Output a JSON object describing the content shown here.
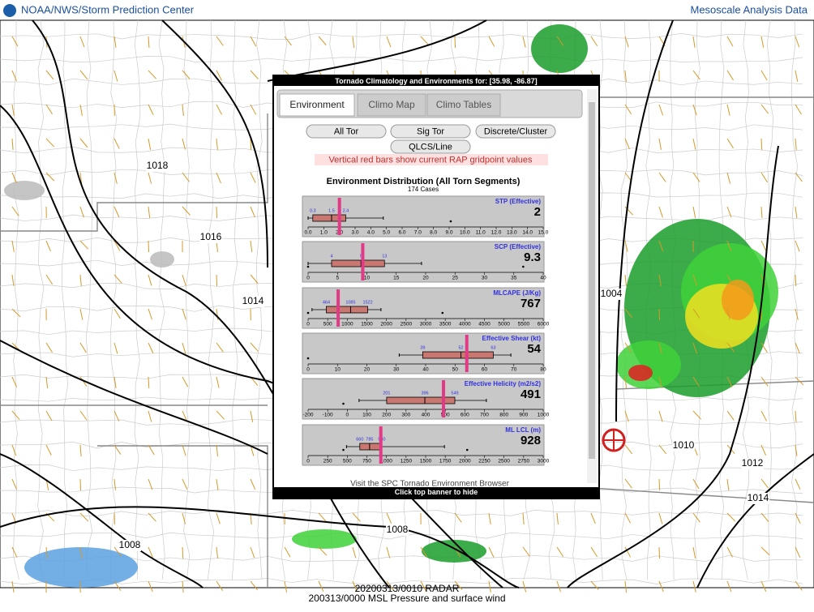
{
  "header": {
    "left": "NOAA/NWS/Storm Prediction Center",
    "right": "Mesoscale Analysis Data"
  },
  "map": {
    "isobar_labels": [
      "1018",
      "1016",
      "1014",
      "1004",
      "1010",
      "1012",
      "1014",
      "1008",
      "1008"
    ]
  },
  "footer": [
    "20200313/0010 RADAR",
    "200313/0000 MSL Pressure and surface wind"
  ],
  "popup": {
    "title": "Tornado Climatology and Environments for: [35.98, -86.87]",
    "tabs": [
      "Environment",
      "Climo Map",
      "Climo Tables"
    ],
    "buttons": [
      "All Tor",
      "Sig Tor",
      "Discrete/Cluster",
      "QLCS/Line"
    ],
    "note": "Vertical red bars show current RAP gridpoint values",
    "heading": "Environment Distribution (All Torn Segments)",
    "cases": "174 Cases",
    "panels": [
      {
        "label": "STP (Effective)",
        "current": 2,
        "xlim": [
          0,
          15
        ],
        "xticks": [
          {
            "value": 0,
            "label": "0.0"
          },
          {
            "value": 1,
            "label": "1.0"
          },
          {
            "value": 2,
            "label": "2.0"
          },
          {
            "value": 3,
            "label": "3.0"
          },
          {
            "value": 4,
            "label": "4.0"
          },
          {
            "value": 5,
            "label": "5.0"
          },
          {
            "value": 6,
            "label": "6.0"
          },
          {
            "value": 7,
            "label": "7.0"
          },
          {
            "value": 8,
            "label": "8.0"
          },
          {
            "value": 9,
            "label": "9.0"
          },
          {
            "value": 10,
            "label": "10.0"
          },
          {
            "value": 11,
            "label": "11.0"
          },
          {
            "value": 12,
            "label": "12.0"
          },
          {
            "value": 13,
            "label": "13.0"
          },
          {
            "value": 14,
            "label": "14.0"
          },
          {
            "value": 15,
            "label": "15.0"
          }
        ],
        "q1": 0.3,
        "median": 1.5,
        "q3": 2.4,
        "whisker": [
          0,
          4.8
        ],
        "outliers": [
          9.1
        ]
      },
      {
        "label": "SCP (Effective)",
        "current": 9.3,
        "xlim": [
          0,
          40
        ],
        "xticks": [
          0,
          5,
          10,
          15,
          20,
          25,
          30,
          35,
          40
        ],
        "q1": 4,
        "median": 9,
        "q3": 13,
        "whisker": [
          0,
          19.3
        ],
        "outliers": [
          0,
          36.6
        ]
      },
      {
        "label": "MLCAPE (J/Kg)",
        "current": 767,
        "xlim": [
          0,
          6000
        ],
        "xticks": [
          0,
          500,
          1000,
          1500,
          2000,
          2500,
          3000,
          3500,
          4000,
          4500,
          5000,
          5500,
          6000
        ],
        "q1": 464,
        "median": 1085,
        "q3": 1522,
        "whisker": [
          100,
          1860
        ],
        "outliers": [
          0,
          3430
        ]
      },
      {
        "label": "Effective Shear (kt)",
        "current": 54,
        "xlim": [
          0,
          80
        ],
        "xticks": [
          0,
          10,
          20,
          30,
          40,
          50,
          60,
          70,
          80
        ],
        "q1": 39,
        "median": 52,
        "q3": 63,
        "whisker": [
          31,
          69
        ],
        "outliers": [
          0
        ]
      },
      {
        "label": "Effective Helicity (m2/s2)",
        "current": 491,
        "xlim": [
          -200,
          1000
        ],
        "xticks": [
          -200,
          -100,
          0,
          100,
          200,
          300,
          400,
          500,
          600,
          700,
          800,
          900,
          1000
        ],
        "q1": 201,
        "median": 396,
        "q3": 549,
        "whisker": [
          60,
          710
        ],
        "outliers": [
          -20
        ]
      },
      {
        "label": "ML LCL (m)",
        "current": 928,
        "xlim": [
          0,
          3000
        ],
        "xticks": [
          0,
          250,
          500,
          750,
          1000,
          1250,
          1500,
          1750,
          2000,
          2250,
          2500,
          2750,
          3000
        ],
        "q1": 660,
        "median": 785,
        "q3": 940,
        "whisker": [
          490,
          1740
        ],
        "outliers": [
          450,
          2030
        ]
      }
    ],
    "link": "Visit the SPC Tornado Environment Browser",
    "hide": "Click top banner to hide"
  }
}
